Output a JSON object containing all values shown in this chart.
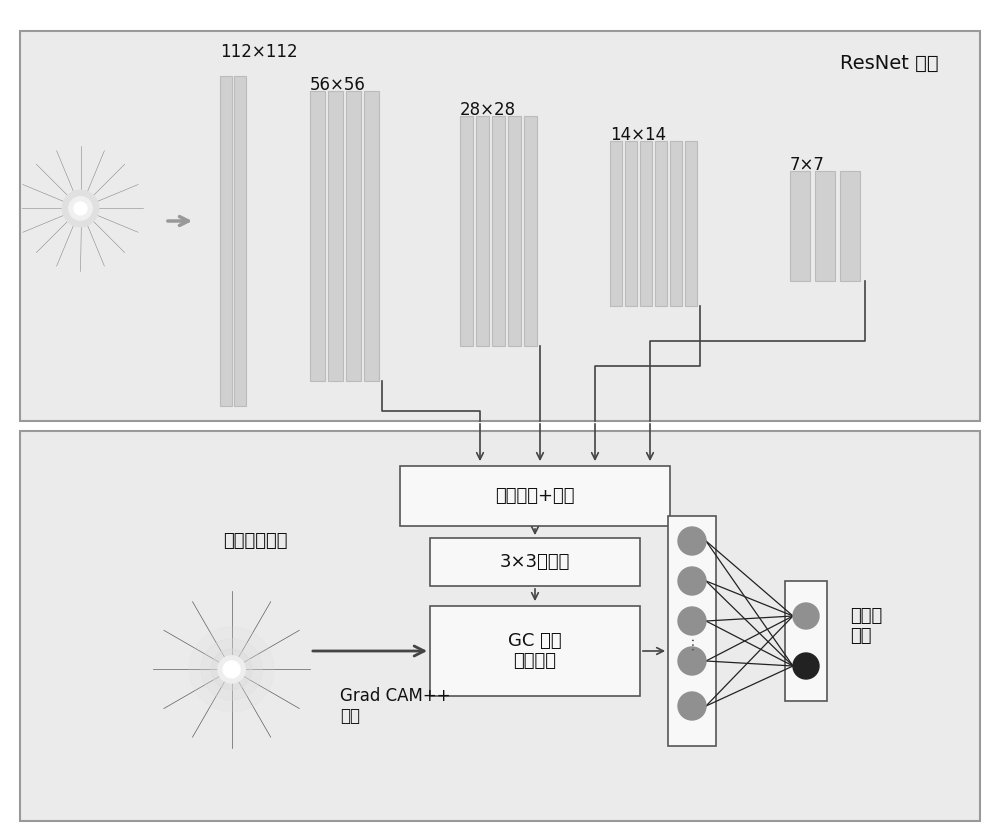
{
  "resnet_label": "ResNet 骨架",
  "label_112": "112×112",
  "label_56": "56×56",
  "label_28": "28×28",
  "label_14": "14×14",
  "label_7": "7×7",
  "pool_label": "池化操作+合并",
  "conv_label": "3×3卷积核",
  "gc_label": "GC 自注\n意力模块",
  "gradcam_label": "Grad CAM++\n算法",
  "evidence_label": "标签证据图谱",
  "output_label": "青光眼\n健康",
  "panel_facecolor": "#ebebeb",
  "panel_edgecolor": "#999999",
  "block_facecolor": "#d2d2d2",
  "block_edgecolor": "#bbbbbb",
  "box_facecolor": "#f8f8f8",
  "box_edgecolor": "#555555",
  "line_color": "#444444",
  "text_color": "#111111",
  "bg_color": "#ffffff"
}
